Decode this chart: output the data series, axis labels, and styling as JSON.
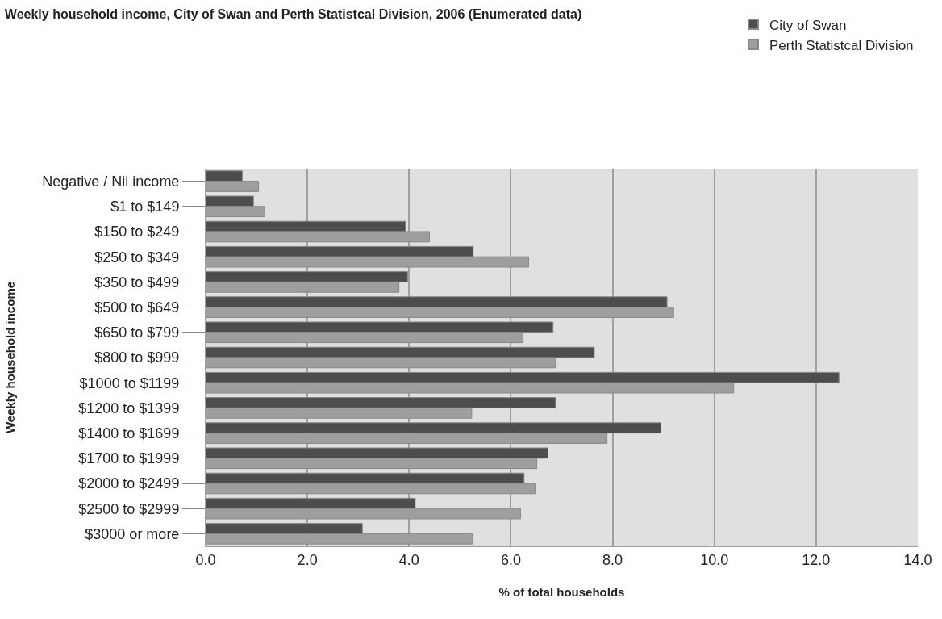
{
  "chart_data": {
    "type": "bar",
    "orientation": "horizontal",
    "title": "Weekly household income, City of Swan and Perth Statistcal Division, 2006 (Enumerated data)",
    "xlabel": "% of total households",
    "ylabel": "Weekly household income",
    "categories": [
      "Negative / Nil income",
      "$1 to $149",
      "$150 to $249",
      "$250 to $349",
      "$350 to $499",
      "$500 to $649",
      "$650 to $799",
      "$800 to $999",
      "$1000 to $1199",
      "$1200 to $1399",
      "$1400 to $1699",
      "$1700 to $1999",
      "$2000 to $2499",
      "$2500 to $2999",
      "$3000 or more"
    ],
    "series": [
      {
        "name": "City of Swan",
        "color": "#4d4d4d",
        "values": [
          0.72,
          0.94,
          3.93,
          5.26,
          3.97,
          9.07,
          6.83,
          7.64,
          12.45,
          6.88,
          8.95,
          6.73,
          6.26,
          4.12,
          3.08
        ]
      },
      {
        "name": "Perth Statistcal Division",
        "color": "#9e9e9e",
        "values": [
          1.04,
          1.16,
          4.4,
          6.35,
          3.8,
          9.2,
          6.24,
          6.88,
          10.38,
          5.23,
          7.89,
          6.51,
          6.48,
          6.19,
          5.25
        ]
      }
    ],
    "xlim": [
      0,
      14
    ],
    "xticks": [
      {
        "value": 0,
        "label": "0.0"
      },
      {
        "value": 2,
        "label": "2.0"
      },
      {
        "value": 4,
        "label": "4.0"
      },
      {
        "value": 6,
        "label": "6.0"
      },
      {
        "value": 8,
        "label": "8.0"
      },
      {
        "value": 10,
        "label": "10.0"
      },
      {
        "value": 12,
        "label": "12.0"
      },
      {
        "value": 14,
        "label": "14.0"
      }
    ],
    "grid": "x",
    "legend": "top right"
  }
}
